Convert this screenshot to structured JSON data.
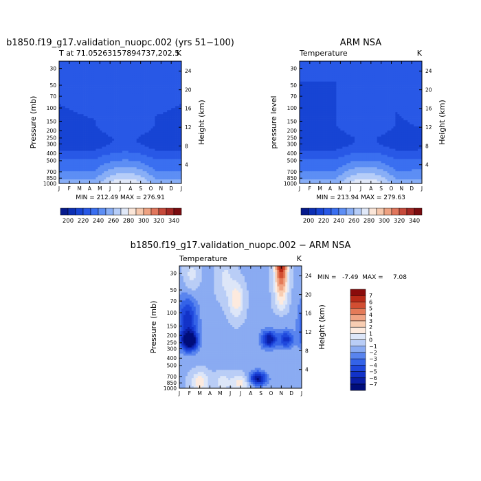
{
  "chart_data": [
    {
      "type": "heatmap",
      "title": "b1850.f19_g17.validation_nuopc.002 (yrs 51−100)",
      "subtitle_left": "T at 71.05263157894737,202.5",
      "subtitle_right": "K",
      "ylabel": "Pressure (mb)",
      "ylabel_right": "Height (km)",
      "x_ticks": [
        "J",
        "F",
        "M",
        "A",
        "M",
        "J",
        "J",
        "A",
        "S",
        "O",
        "N",
        "D",
        "J"
      ],
      "y_ticks": [
        "30",
        "50",
        "70",
        "100",
        "150",
        "200",
        "250",
        "300",
        "400",
        "500",
        "700",
        "850",
        "1000"
      ],
      "height_ticks": [
        "24",
        "20",
        "16",
        "12",
        "8",
        "4"
      ],
      "stats": "MIN = 212.49  MAX = 276.91",
      "colorbar_labels": [
        "200",
        "220",
        "240",
        "260",
        "280",
        "300",
        "320",
        "340"
      ],
      "min": 212.49,
      "max": 276.91
    },
    {
      "type": "heatmap",
      "title": "ARM NSA",
      "subtitle_left": "Temperature",
      "subtitle_right": "K",
      "ylabel": "pressure level",
      "ylabel_right": "Height (km)",
      "x_ticks": [
        "J",
        "F",
        "M",
        "A",
        "M",
        "J",
        "J",
        "A",
        "S",
        "O",
        "N",
        "D",
        "J"
      ],
      "y_ticks": [
        "30",
        "50",
        "70",
        "100",
        "150",
        "200",
        "250",
        "300",
        "400",
        "500",
        "700",
        "850",
        "1000"
      ],
      "height_ticks": [
        "24",
        "20",
        "16",
        "12",
        "8",
        "4"
      ],
      "stats": "MIN = 213.94  MAX = 279.63",
      "colorbar_labels": [
        "200",
        "220",
        "240",
        "260",
        "280",
        "300",
        "320",
        "340"
      ],
      "min": 213.94,
      "max": 279.63
    },
    {
      "type": "heatmap",
      "title": "b1850.f19_g17.validation_nuopc.002 − ARM NSA",
      "subtitle_left": "Temperature",
      "subtitle_right": "K",
      "ylabel": "Pressure (mb)",
      "ylabel_right": "Height (km)",
      "x_ticks": [
        "J",
        "F",
        "M",
        "A",
        "M",
        "J",
        "J",
        "A",
        "S",
        "O",
        "N",
        "D",
        "J"
      ],
      "y_ticks": [
        "30",
        "50",
        "70",
        "100",
        "150",
        "200",
        "250",
        "300",
        "400",
        "500",
        "700",
        "850",
        "1000"
      ],
      "height_ticks": [
        "24",
        "20",
        "16",
        "12",
        "8",
        "4"
      ],
      "stats": "MIN =   -7.49  MAX =     7.08",
      "colorbar_labels": [
        "7",
        "6",
        "5",
        "4",
        "3",
        "2",
        "1",
        "0",
        "−1",
        "−2",
        "−3",
        "−4",
        "−5",
        "−6",
        "−7"
      ],
      "min": -7.49,
      "max": 7.08
    }
  ],
  "colors": {
    "abs_scale": [
      "#061a8c",
      "#0c2fb4",
      "#1744d4",
      "#2858e6",
      "#3a6ff0",
      "#5d8ef4",
      "#88aef6",
      "#b6cdf8",
      "#e0e8f8",
      "#fbe6d8",
      "#f6c8ad",
      "#eea282",
      "#e0765c",
      "#c64a3b",
      "#a42824",
      "#7a0c10"
    ],
    "diff_scale": [
      "#000d7a",
      "#0a1ea6",
      "#1232c8",
      "#1f48dc",
      "#3463e8",
      "#5984ee",
      "#8aabf2",
      "#b9cdf6",
      "#dde6f8",
      "#fdeade",
      "#f8cdb2",
      "#f0a484",
      "#e47a58",
      "#d24e32",
      "#b82a18",
      "#8a0c0c"
    ]
  }
}
